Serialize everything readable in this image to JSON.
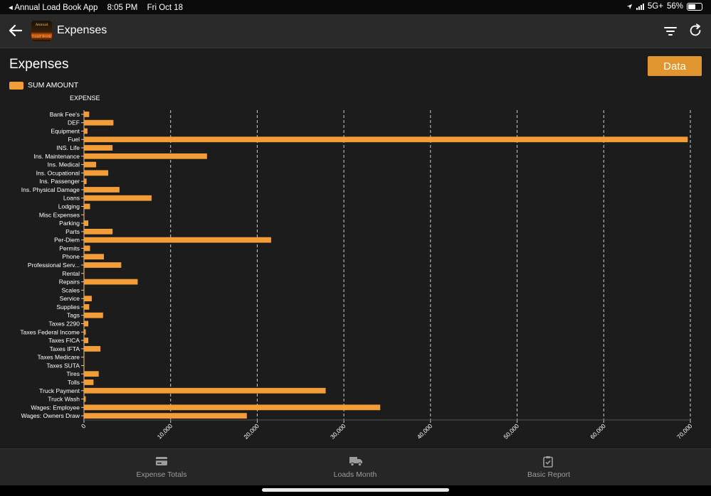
{
  "status_bar": {
    "back_app": "◂ Annual Load Book App",
    "time": "8:05 PM",
    "date": "Fri Oct 18",
    "network": "5G+",
    "battery": "56%",
    "battery_level": 0.56
  },
  "app_bar": {
    "title": "Expenses",
    "logo_text_top": "Annual",
    "logo_text_bottom": "Load Book"
  },
  "page": {
    "title": "Expenses",
    "data_button": "Data"
  },
  "chart_data": {
    "type": "bar",
    "orientation": "horizontal",
    "legend": "SUM AMOUNT",
    "category_axis_title": "EXPENSE",
    "grid": true,
    "xlim": [
      0,
      70000
    ],
    "x_ticks": [
      "0",
      "10,000",
      "20,000",
      "30,000",
      "40,000",
      "50,000",
      "60,000",
      "70,000"
    ],
    "categories": [
      "Bank Fee's",
      "DEF",
      "Equipment",
      "Fuel",
      "INS. Life",
      "Ins. Maintenance",
      "Ins. Medical",
      "Ins. Ocupational",
      "Ins. Passenger",
      "Ins. Physical Damage",
      "Loans",
      "Lodging",
      "Misc Expenses",
      "Parking",
      "Parts",
      "Per-Diem",
      "Permits",
      "Phone",
      "Professional Serv...",
      "Rental",
      "Repairs",
      "Scales",
      "Service",
      "Supplies",
      "Tags",
      "Taxes 2290",
      "Taxes Federal Income",
      "Taxes FICA",
      "Taxes IFTA",
      "Taxes Medicare",
      "Taxes SUTA",
      "Tires",
      "Tolls",
      "Truck Payment",
      "Truck Wash",
      "Wages: Employee",
      "Wages: Owners Draw"
    ],
    "values": [
      600,
      3400,
      400,
      69700,
      3300,
      14200,
      1400,
      2800,
      300,
      4100,
      7800,
      700,
      50,
      500,
      3300,
      21600,
      700,
      2300,
      4300,
      50,
      6200,
      50,
      900,
      600,
      2200,
      500,
      200,
      500,
      1900,
      50,
      50,
      1700,
      1100,
      27900,
      200,
      34200,
      18800
    ]
  },
  "bottom_nav": {
    "items": [
      {
        "label": "Expense Totals"
      },
      {
        "label": "Loads Month"
      },
      {
        "label": "Basic Report"
      }
    ]
  },
  "colors": {
    "accent": "#e1952e",
    "bar": "#f29d38",
    "background": "#1c1c1c"
  }
}
